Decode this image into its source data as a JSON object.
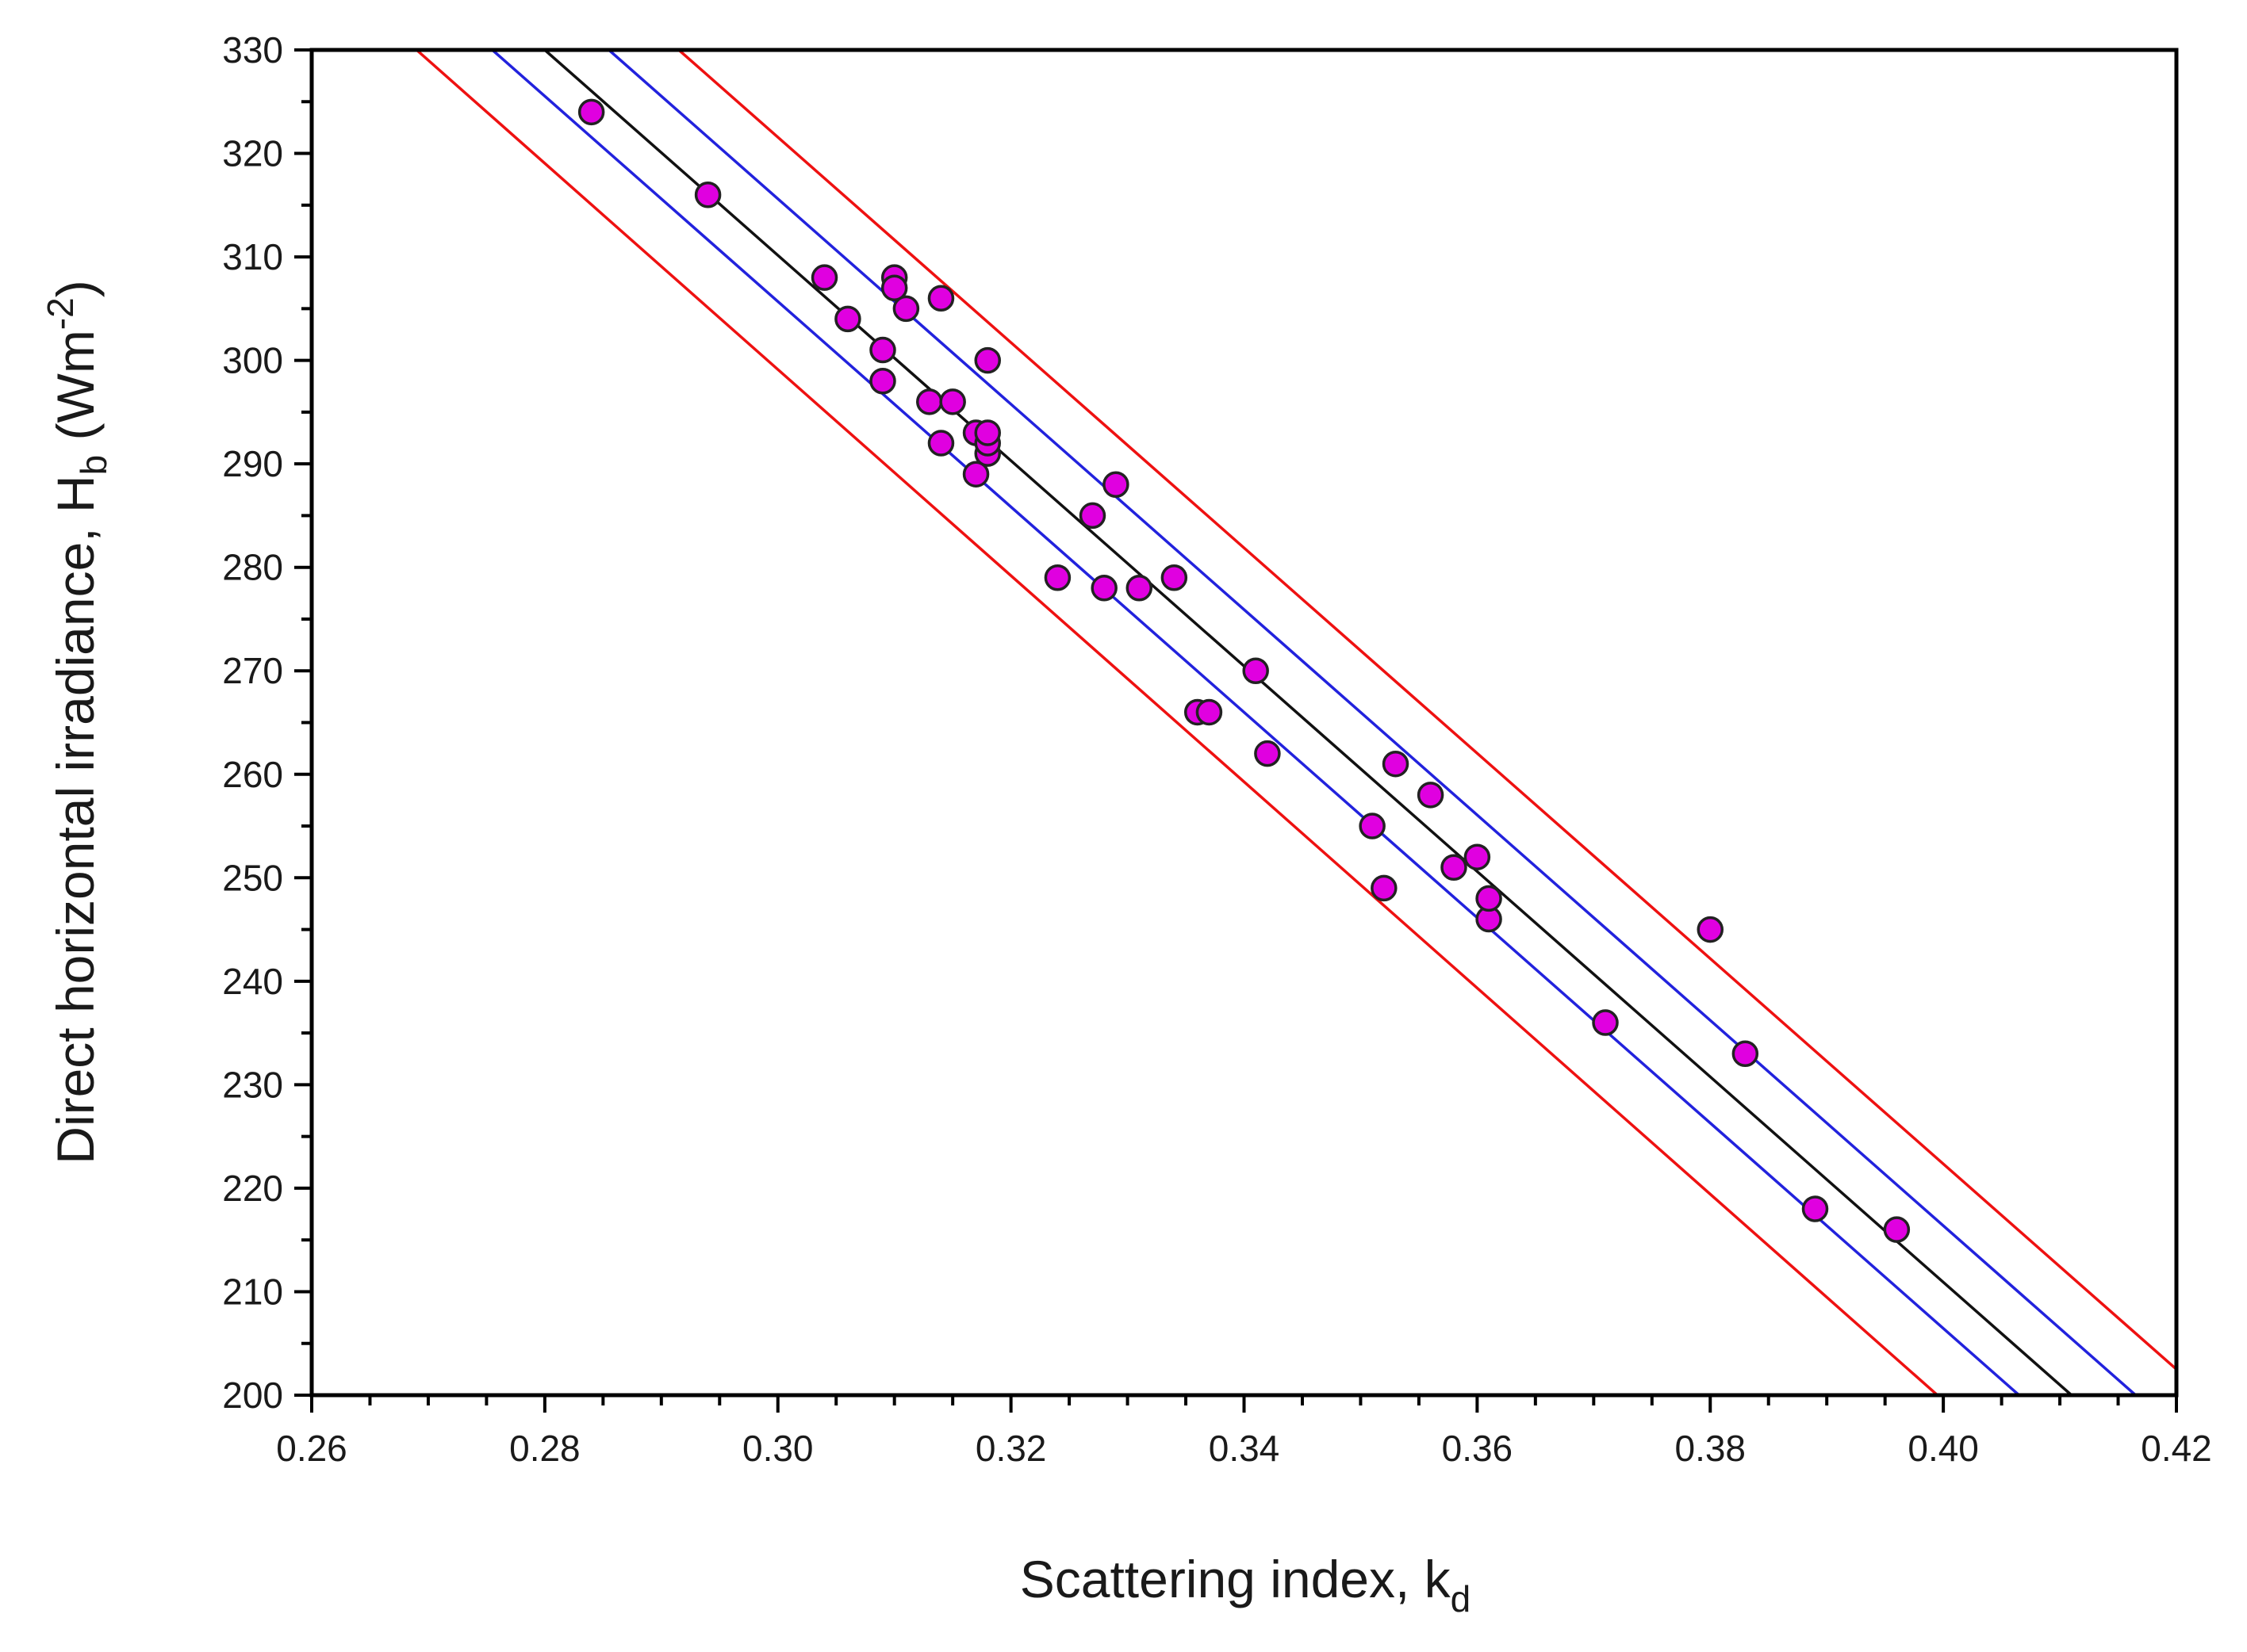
{
  "chart_data": {
    "type": "scatter",
    "title": "",
    "xlabel": "Scattering index, k",
    "xlabel_sub": "d",
    "ylabel_main": "Direct horizontal irradiance, H",
    "ylabel_sub": "b",
    "ylabel_unit_open": " (Wm",
    "ylabel_unit_sup": "-2",
    "ylabel_unit_close": ")",
    "xlim": [
      0.26,
      0.42
    ],
    "ylim": [
      200,
      330
    ],
    "xticks": [
      0.26,
      0.28,
      0.3,
      0.32,
      0.34,
      0.36,
      0.38,
      0.4,
      0.42
    ],
    "xtick_labels": [
      "0.26",
      "0.28",
      "0.30",
      "0.32",
      "0.34",
      "0.36",
      "0.38",
      "0.40",
      "0.42"
    ],
    "yticks": [
      200,
      210,
      220,
      230,
      240,
      250,
      260,
      270,
      280,
      290,
      300,
      310,
      320,
      330
    ],
    "ytick_labels": [
      "200",
      "210",
      "220",
      "230",
      "240",
      "250",
      "260",
      "270",
      "280",
      "290",
      "300",
      "310",
      "320",
      "330"
    ],
    "grid": false,
    "series": [
      {
        "kind": "points",
        "color": "#e000e0",
        "edge_color": "#222222",
        "x": [
          0.284,
          0.294,
          0.304,
          0.306,
          0.309,
          0.309,
          0.31,
          0.31,
          0.311,
          0.313,
          0.314,
          0.314,
          0.315,
          0.317,
          0.317,
          0.318,
          0.318,
          0.318,
          0.318,
          0.324,
          0.327,
          0.328,
          0.329,
          0.331,
          0.334,
          0.336,
          0.337,
          0.341,
          0.342,
          0.351,
          0.352,
          0.353,
          0.356,
          0.358,
          0.36,
          0.361,
          0.361,
          0.371,
          0.38,
          0.383,
          0.389,
          0.396
        ],
        "y": [
          324,
          316,
          308,
          304,
          301,
          298,
          308,
          307,
          305,
          296,
          306,
          292,
          296,
          293,
          289,
          291,
          292,
          300,
          293,
          279,
          285,
          278,
          288,
          278,
          279,
          266,
          266,
          270,
          262,
          255,
          249,
          261,
          258,
          251,
          252,
          246,
          248,
          236,
          245,
          233,
          218,
          216
        ]
      },
      {
        "kind": "line",
        "name": "",
        "role": "regression",
        "color": "#111111",
        "x": [
          0.28,
          0.411
        ],
        "y": [
          330,
          200
        ]
      },
      {
        "kind": "line",
        "role": "confidence-upper",
        "color": "#2222dd",
        "x": [
          0.2855,
          0.4165
        ],
        "y": [
          330,
          200
        ]
      },
      {
        "kind": "line",
        "role": "confidence-lower",
        "color": "#2222dd",
        "x": [
          0.2755,
          0.4065
        ],
        "y": [
          330,
          200
        ]
      },
      {
        "kind": "line",
        "role": "prediction-upper",
        "color": "#ee1111",
        "x": [
          0.2915,
          0.42
        ],
        "y": [
          330,
          202.5
        ]
      },
      {
        "kind": "line",
        "role": "prediction-lower",
        "color": "#ee1111",
        "x": [
          0.269,
          0.3995
        ],
        "y": [
          330,
          200
        ]
      }
    ]
  }
}
